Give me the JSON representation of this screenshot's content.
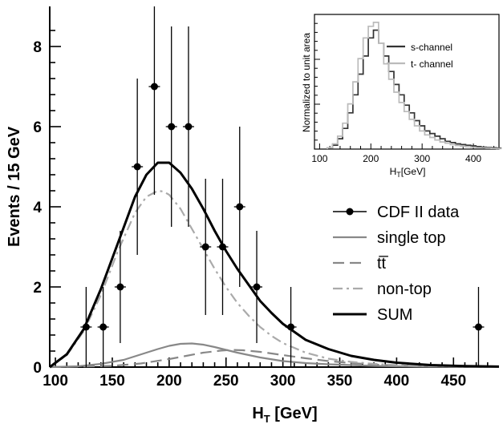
{
  "chart_data": [
    {
      "type": "line",
      "xlabel_main": "H",
      "xlabel_sub": "T",
      "xlabel_unit": " [GeV]",
      "ylabel": "Events / 15 GeV",
      "xlim": [
        95,
        490
      ],
      "ylim": [
        0,
        9.0
      ],
      "xticks": [
        100,
        150,
        200,
        250,
        300,
        350,
        400,
        450
      ],
      "yticks": [
        0,
        2,
        4,
        6,
        8
      ],
      "points": [
        {
          "x": 127,
          "y": 1,
          "err": 1.0
        },
        {
          "x": 142,
          "y": 1,
          "err": 1.0
        },
        {
          "x": 157,
          "y": 2,
          "err": 1.4
        },
        {
          "x": 172,
          "y": 5,
          "err": 2.2
        },
        {
          "x": 187,
          "y": 7,
          "err": 2.7
        },
        {
          "x": 202,
          "y": 6,
          "err": 2.5
        },
        {
          "x": 217,
          "y": 6,
          "err": 2.5
        },
        {
          "x": 232,
          "y": 3,
          "err": 1.7
        },
        {
          "x": 247,
          "y": 3,
          "err": 1.7
        },
        {
          "x": 262,
          "y": 4,
          "err": 2.0
        },
        {
          "x": 277,
          "y": 2,
          "err": 1.4
        },
        {
          "x": 307,
          "y": 1,
          "err": 1.0
        },
        {
          "x": 472,
          "y": 1,
          "err": 1.0
        }
      ],
      "series": [
        {
          "name": "CDF II data",
          "style": "points",
          "color": "#000000"
        },
        {
          "name": "single top",
          "style": "solid",
          "color": "#888888",
          "x": [
            95,
            120,
            140,
            160,
            180,
            190,
            200,
            210,
            220,
            230,
            240,
            250,
            260,
            270,
            280,
            300,
            320,
            340,
            360,
            380,
            400,
            420,
            450,
            490
          ],
          "values": [
            0.0,
            0.02,
            0.08,
            0.18,
            0.36,
            0.45,
            0.53,
            0.58,
            0.59,
            0.56,
            0.5,
            0.43,
            0.36,
            0.3,
            0.24,
            0.15,
            0.1,
            0.07,
            0.05,
            0.03,
            0.02,
            0.012,
            0.006,
            0.002
          ]
        },
        {
          "name": "tt̅",
          "style": "dashed",
          "color": "#888888",
          "x": [
            95,
            150,
            175,
            200,
            215,
            230,
            245,
            255,
            265,
            280,
            300,
            320,
            340,
            360,
            380,
            400,
            420,
            450,
            490
          ],
          "values": [
            0.0,
            0.03,
            0.09,
            0.2,
            0.28,
            0.36,
            0.41,
            0.43,
            0.42,
            0.38,
            0.3,
            0.22,
            0.15,
            0.1,
            0.065,
            0.04,
            0.025,
            0.012,
            0.004
          ]
        },
        {
          "name": "non-top",
          "style": "dashdot",
          "color": "#aaaaaa",
          "x": [
            95,
            110,
            125,
            140,
            155,
            170,
            180,
            190,
            195,
            200,
            210,
            220,
            230,
            240,
            250,
            260,
            270,
            280,
            290,
            300,
            320,
            340,
            360,
            380,
            400,
            430,
            460,
            490
          ],
          "values": [
            0.0,
            0.3,
            0.9,
            1.8,
            2.9,
            3.85,
            4.25,
            4.4,
            4.38,
            4.3,
            3.95,
            3.45,
            2.95,
            2.45,
            2.0,
            1.6,
            1.28,
            1.0,
            0.78,
            0.6,
            0.36,
            0.21,
            0.13,
            0.08,
            0.05,
            0.025,
            0.012,
            0.006
          ]
        },
        {
          "name": "SUM",
          "style": "solid-thick",
          "color": "#000000",
          "x": [
            95,
            110,
            125,
            140,
            155,
            170,
            180,
            190,
            200,
            210,
            220,
            230,
            240,
            250,
            260,
            270,
            280,
            290,
            300,
            320,
            340,
            360,
            380,
            400,
            430,
            460,
            490
          ],
          "values": [
            0.0,
            0.32,
            0.95,
            1.95,
            3.1,
            4.25,
            4.8,
            5.1,
            5.1,
            4.85,
            4.45,
            3.95,
            3.4,
            2.9,
            2.45,
            2.05,
            1.65,
            1.35,
            1.08,
            0.68,
            0.45,
            0.28,
            0.18,
            0.11,
            0.05,
            0.025,
            0.012
          ]
        }
      ]
    },
    {
      "type": "line",
      "inset": true,
      "xlabel_main": "H",
      "xlabel_sub": "T",
      "xlabel_unit": "[GeV]",
      "ylabel": "Normalized to unit area",
      "xlim": [
        90,
        450
      ],
      "ylim": [
        0,
        1
      ],
      "xticks": [
        100,
        200,
        300,
        400
      ],
      "series": [
        {
          "name": "s-channel",
          "color": "#333333",
          "x": [
            120,
            130,
            140,
            150,
            160,
            170,
            180,
            190,
            200,
            210,
            220,
            230,
            240,
            250,
            260,
            270,
            280,
            290,
            300,
            310,
            320,
            330,
            340,
            350,
            360,
            370,
            380,
            390,
            400,
            410,
            420,
            430,
            440,
            450
          ],
          "values": [
            0.01,
            0.03,
            0.08,
            0.16,
            0.28,
            0.42,
            0.58,
            0.72,
            0.86,
            0.92,
            0.82,
            0.72,
            0.6,
            0.5,
            0.42,
            0.34,
            0.28,
            0.22,
            0.18,
            0.14,
            0.12,
            0.1,
            0.08,
            0.06,
            0.05,
            0.04,
            0.035,
            0.03,
            0.025,
            0.02,
            0.015,
            0.012,
            0.01,
            0.008
          ]
        },
        {
          "name": "t- channel",
          "color": "#bbbbbb",
          "x": [
            120,
            130,
            140,
            150,
            160,
            170,
            180,
            190,
            200,
            210,
            220,
            230,
            240,
            250,
            260,
            270,
            280,
            290,
            300,
            310,
            320,
            330,
            340,
            350,
            360,
            370,
            380,
            390,
            400,
            410,
            420,
            430,
            440,
            450
          ],
          "values": [
            0.01,
            0.04,
            0.1,
            0.2,
            0.35,
            0.52,
            0.7,
            0.86,
            0.95,
            0.98,
            0.82,
            0.66,
            0.54,
            0.44,
            0.36,
            0.29,
            0.23,
            0.18,
            0.14,
            0.11,
            0.09,
            0.07,
            0.055,
            0.045,
            0.035,
            0.028,
            0.022,
            0.018,
            0.014,
            0.011,
            0.009,
            0.007,
            0.005,
            0.004
          ]
        }
      ],
      "legend": [
        {
          "label": "s-channel",
          "color": "#333333"
        },
        {
          "label": "t- channel",
          "color": "#bbbbbb"
        }
      ]
    }
  ],
  "legend": [
    {
      "label": "CDF II data",
      "kind": "marker"
    },
    {
      "label": "single top",
      "kind": "solid"
    },
    {
      "label": "tt̅",
      "kind": "dashed"
    },
    {
      "label": "non-top",
      "kind": "dashdot"
    },
    {
      "label": "SUM",
      "kind": "solid-thick"
    }
  ]
}
